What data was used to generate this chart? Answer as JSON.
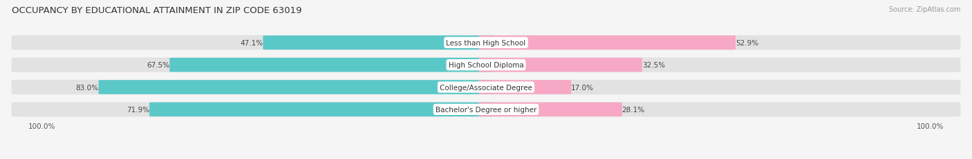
{
  "title": "OCCUPANCY BY EDUCATIONAL ATTAINMENT IN ZIP CODE 63019",
  "source": "Source: ZipAtlas.com",
  "categories": [
    "Less than High School",
    "High School Diploma",
    "College/Associate Degree",
    "Bachelor's Degree or higher"
  ],
  "owner_pct": [
    47.1,
    67.5,
    83.0,
    71.9
  ],
  "renter_pct": [
    52.9,
    32.5,
    17.0,
    28.1
  ],
  "owner_color": "#5BC8C8",
  "renter_color": "#F7A8C4",
  "bg_color": "#f5f5f5",
  "bar_bg_color": "#e2e2e2",
  "title_fontsize": 9.5,
  "bar_label_fontsize": 7.5,
  "category_fontsize": 7.5,
  "legend_fontsize": 8,
  "axis_label": "100.0%"
}
